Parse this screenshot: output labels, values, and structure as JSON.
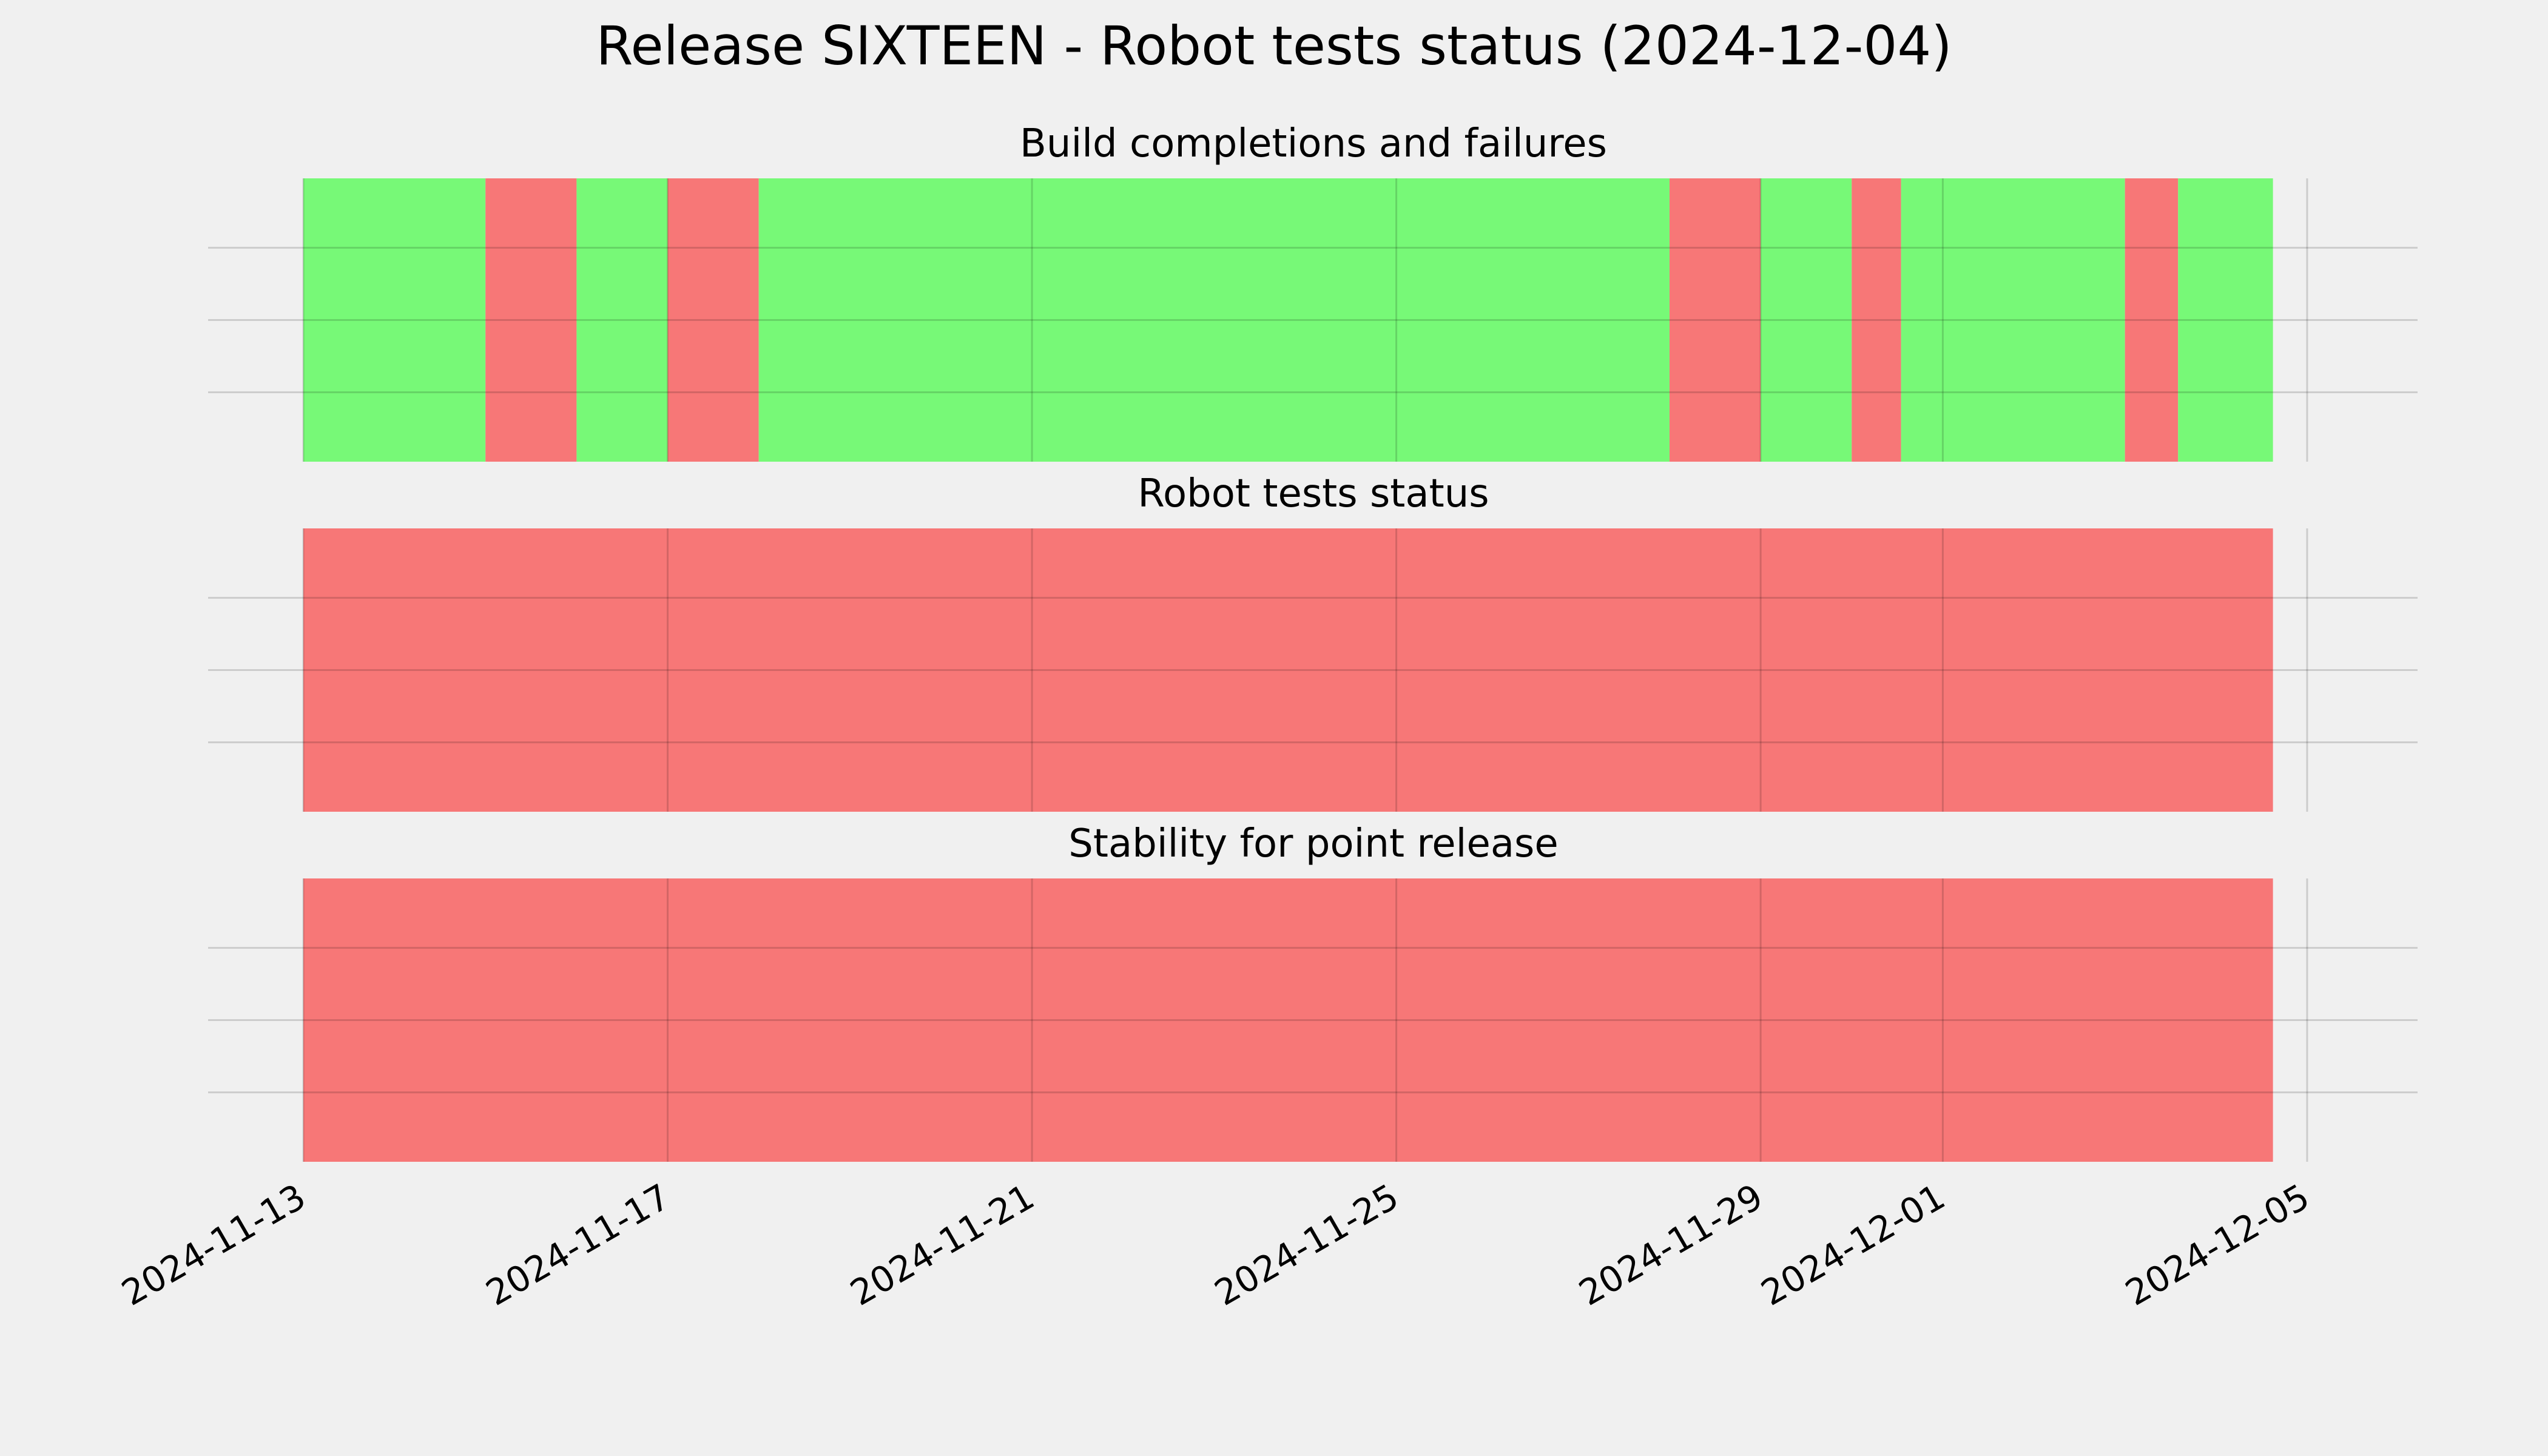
{
  "chart_data": {
    "type": "timeline",
    "title": "Release SIXTEEN - Robot tests status (2024-12-04)",
    "x_axis": {
      "type": "date",
      "range": [
        "2024-11-13",
        "2024-12-05T12:00"
      ],
      "ticks": [
        "2024-11-13",
        "2024-11-17",
        "2024-11-21",
        "2024-11-25",
        "2024-11-29",
        "2024-12-01",
        "2024-12-05"
      ]
    },
    "colors": {
      "pass": "#77f977",
      "fail": "#f77777"
    },
    "panels": [
      {
        "title": "Build completions and failures",
        "segments": [
          {
            "start": "2024-11-13T00:00",
            "end": "2024-11-15T00:00",
            "status": "pass"
          },
          {
            "start": "2024-11-15T00:00",
            "end": "2024-11-16T00:00",
            "status": "fail"
          },
          {
            "start": "2024-11-16T00:00",
            "end": "2024-11-17T00:00",
            "status": "pass"
          },
          {
            "start": "2024-11-17T00:00",
            "end": "2024-11-18T00:00",
            "status": "fail"
          },
          {
            "start": "2024-11-18T00:00",
            "end": "2024-11-28T00:00",
            "status": "pass"
          },
          {
            "start": "2024-11-28T00:00",
            "end": "2024-11-29T00:00",
            "status": "fail"
          },
          {
            "start": "2024-11-29T00:00",
            "end": "2024-11-30T00:00",
            "status": "pass"
          },
          {
            "start": "2024-11-30T00:00",
            "end": "2024-11-30T13:00",
            "status": "fail"
          },
          {
            "start": "2024-11-30T13:00",
            "end": "2024-12-03T00:00",
            "status": "pass"
          },
          {
            "start": "2024-12-03T00:00",
            "end": "2024-12-03T14:00",
            "status": "fail"
          },
          {
            "start": "2024-12-03T14:00",
            "end": "2024-12-04T15:00",
            "status": "pass"
          }
        ]
      },
      {
        "title": "Robot tests status",
        "segments": [
          {
            "start": "2024-11-13T00:00",
            "end": "2024-12-04T15:00",
            "status": "fail"
          }
        ]
      },
      {
        "title": "Stability for point release",
        "segments": [
          {
            "start": "2024-11-13T00:00",
            "end": "2024-12-04T15:00",
            "status": "fail"
          }
        ]
      }
    ]
  }
}
